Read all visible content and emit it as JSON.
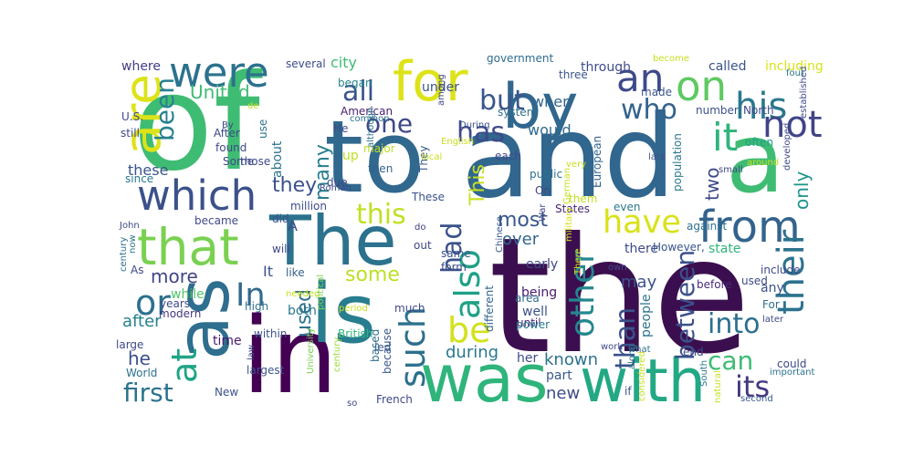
{
  "word_cloud": {
    "words": [
      {
        "text": "the",
        "color": "#3b0f4f"
      },
      {
        "text": "of",
        "color": "#3fbc73"
      },
      {
        "text": "and",
        "color": "#31668e"
      },
      {
        "text": "to",
        "color": "#31688e"
      },
      {
        "text": "a",
        "color": "#3fbc73"
      },
      {
        "text": "in",
        "color": "#440154"
      },
      {
        "text": "is",
        "color": "#287d8e"
      },
      {
        "text": "as",
        "color": "#2e6e8e"
      },
      {
        "text": "The",
        "color": "#2c728e"
      },
      {
        "text": "was",
        "color": "#2fb47c"
      },
      {
        "text": "with",
        "color": "#22a884"
      },
      {
        "text": "by",
        "color": "#31678e"
      },
      {
        "text": "for",
        "color": "#dde318"
      },
      {
        "text": "are",
        "color": "#dde318"
      },
      {
        "text": "that",
        "color": "#7ad151"
      },
      {
        "text": "which",
        "color": "#3b518b"
      },
      {
        "text": "from",
        "color": "#33638d"
      },
      {
        "text": "were",
        "color": "#2c728e"
      },
      {
        "text": "on",
        "color": "#5ec962"
      },
      {
        "text": "it",
        "color": "#2fb47c"
      },
      {
        "text": "an",
        "color": "#3e4a89"
      },
      {
        "text": "his",
        "color": "#2a788e"
      },
      {
        "text": "have",
        "color": "#d8e219"
      },
      {
        "text": "not",
        "color": "#414487"
      },
      {
        "text": "their",
        "color": "#2c728e"
      },
      {
        "text": "or",
        "color": "#2d708e"
      },
      {
        "text": "at",
        "color": "#20a486"
      },
      {
        "text": "be",
        "color": "#d2e21b"
      },
      {
        "text": "In",
        "color": "#31688e"
      },
      {
        "text": "also",
        "color": "#1fa187"
      },
      {
        "text": "such",
        "color": "#2d708e"
      },
      {
        "text": "other",
        "color": "#24878e"
      },
      {
        "text": "its",
        "color": "#453781"
      },
      {
        "text": "this",
        "color": "#c2df23"
      },
      {
        "text": "has",
        "color": "#3e4989"
      },
      {
        "text": "who",
        "color": "#33638d"
      },
      {
        "text": "but",
        "color": "#39568c"
      },
      {
        "text": "all",
        "color": "#3a548c"
      },
      {
        "text": "one",
        "color": "#3f4788"
      },
      {
        "text": "been",
        "color": "#26828e"
      },
      {
        "text": "had",
        "color": "#3b528b"
      },
      {
        "text": "than",
        "color": "#3b528b"
      },
      {
        "text": "between",
        "color": "#3c508b"
      },
      {
        "text": "into",
        "color": "#2d708e"
      },
      {
        "text": "can",
        "color": "#3dbc74"
      },
      {
        "text": "first",
        "color": "#2c738e"
      },
      {
        "text": "most",
        "color": "#39568c"
      },
      {
        "text": "they",
        "color": "#3b518b"
      },
      {
        "text": "many",
        "color": "#277f8e"
      },
      {
        "text": "used",
        "color": "#2d718e"
      },
      {
        "text": "This",
        "color": "#c8e020"
      },
      {
        "text": "some",
        "color": "#bddf26"
      },
      {
        "text": "more",
        "color": "#404688"
      },
      {
        "text": "United",
        "color": "#3fbc73"
      },
      {
        "text": "only",
        "color": "#1f948c"
      },
      {
        "text": "two",
        "color": "#3e4a89"
      },
      {
        "text": "he",
        "color": "#3b518b"
      },
      {
        "text": "may",
        "color": "#3a538b"
      },
      {
        "text": "would",
        "color": "#2f6b8e"
      },
      {
        "text": "these",
        "color": "#3a548c"
      },
      {
        "text": "after",
        "color": "#26818e"
      },
      {
        "text": "during",
        "color": "#2a778e"
      },
      {
        "text": "over",
        "color": "#32658e"
      },
      {
        "text": "new",
        "color": "#3e4c8a"
      },
      {
        "text": "known",
        "color": "#2d718e"
      },
      {
        "text": "when",
        "color": "#31668e"
      },
      {
        "text": "called",
        "color": "#3a548c"
      },
      {
        "text": "including",
        "color": "#d8e219"
      },
      {
        "text": "through",
        "color": "#3e4c8a"
      },
      {
        "text": "under",
        "color": "#3b518b"
      },
      {
        "text": "where",
        "color": "#433e85"
      },
      {
        "text": "city",
        "color": "#3fbc73"
      },
      {
        "text": "It",
        "color": "#3b528b"
      },
      {
        "text": "A",
        "color": "#3e4a89"
      },
      {
        "text": "about",
        "color": "#2c728e"
      },
      {
        "text": "up",
        "color": "#c2df23"
      },
      {
        "text": "became",
        "color": "#3e4989"
      },
      {
        "text": "there",
        "color": "#3e4a89"
      },
      {
        "text": "state",
        "color": "#2fb47c"
      },
      {
        "text": "often",
        "color": "#1f9e89"
      },
      {
        "text": "number",
        "color": "#3b528b"
      },
      {
        "text": "early",
        "color": "#3f4788"
      },
      {
        "text": "being",
        "color": "#481a6c"
      },
      {
        "text": "well",
        "color": "#3b528b"
      },
      {
        "text": "both",
        "color": "#2a788e"
      },
      {
        "text": "while",
        "color": "#52c569"
      },
      {
        "text": "people",
        "color": "#2c728e"
      },
      {
        "text": "any",
        "color": "#3b528b"
      },
      {
        "text": "before",
        "color": "#472c7a"
      },
      {
        "text": "part",
        "color": "#38598c"
      },
      {
        "text": "her",
        "color": "#3e4c8a"
      },
      {
        "text": "could",
        "color": "#3e4989"
      },
      {
        "text": "time",
        "color": "#48186a"
      },
      {
        "text": "several",
        "color": "#3d4d8a"
      },
      {
        "text": "government",
        "color": "#2f6c8e"
      },
      {
        "text": "began",
        "color": "#25848e"
      },
      {
        "text": "made",
        "color": "#3a548c"
      },
      {
        "text": "three",
        "color": "#39568c"
      },
      {
        "text": "major",
        "color": "#c2df23"
      },
      {
        "text": "use",
        "color": "#2c738e"
      },
      {
        "text": "each",
        "color": "#3e4a89"
      },
      {
        "text": "American",
        "color": "#481f70"
      },
      {
        "text": "population",
        "color": "#2a788e"
      },
      {
        "text": "European",
        "color": "#32648e"
      },
      {
        "text": "million",
        "color": "#3e4a89"
      },
      {
        "text": "States",
        "color": "#482878"
      },
      {
        "text": "against",
        "color": "#2d708e"
      },
      {
        "text": "However,",
        "color": "#3a548c"
      },
      {
        "text": "include",
        "color": "#3e4989"
      },
      {
        "text": "modern",
        "color": "#453882"
      },
      {
        "text": "high",
        "color": "#2d708e"
      },
      {
        "text": "within",
        "color": "#3b528b"
      },
      {
        "text": "British",
        "color": "#2fb47c"
      },
      {
        "text": "because",
        "color": "#38588c"
      },
      {
        "text": "French",
        "color": "#3e4989"
      },
      {
        "text": "largest",
        "color": "#3b528b"
      },
      {
        "text": "New",
        "color": "#3b518b"
      },
      {
        "text": "World",
        "color": "#2c728e"
      },
      {
        "text": "system",
        "color": "#2d708e"
      },
      {
        "text": "He",
        "color": "#3e4a89"
      },
      {
        "text": "until",
        "color": "#472d7b"
      },
      {
        "text": "power",
        "color": "#2a788e"
      },
      {
        "text": "area",
        "color": "#2f6c8e"
      },
      {
        "text": "For",
        "color": "#2c728e"
      },
      {
        "text": "end",
        "color": "#3e4989"
      },
      {
        "text": "led",
        "color": "#38598c"
      },
      {
        "text": "based",
        "color": "#2e6e8e"
      },
      {
        "text": "University",
        "color": "#7ad151"
      },
      {
        "text": "century,",
        "color": "#9fda3a"
      },
      {
        "text": "so",
        "color": "#3f4788"
      },
      {
        "text": "law",
        "color": "#404688"
      },
      {
        "text": "like",
        "color": "#34618d"
      },
      {
        "text": "needed",
        "color": "#c8e020"
      },
      {
        "text": "political",
        "color": "#7ad151"
      },
      {
        "text": "period",
        "color": "#c8e020"
      },
      {
        "text": "much",
        "color": "#3e4989"
      },
      {
        "text": "different",
        "color": "#32648e"
      },
      {
        "text": "same",
        "color": "#3a548c"
      },
      {
        "text": "form",
        "color": "#3e4a89"
      },
      {
        "text": "out",
        "color": "#3f4788"
      },
      {
        "text": "do",
        "color": "#423f85"
      },
      {
        "text": "did",
        "color": "#3b528b"
      },
      {
        "text": "will",
        "color": "#3e4989"
      },
      {
        "text": "These",
        "color": "#3b528b"
      },
      {
        "text": "They",
        "color": "#38598c"
      },
      {
        "text": "then",
        "color": "#33638d"
      },
      {
        "text": "due",
        "color": "#3e4989"
      },
      {
        "text": "public",
        "color": "#2d708e"
      },
      {
        "text": "On",
        "color": "#3f4788"
      },
      {
        "text": "them",
        "color": "#c2df23"
      },
      {
        "text": "even",
        "color": "#2a788e"
      },
      {
        "text": "military",
        "color": "#d8e219"
      },
      {
        "text": "There",
        "color": "#d8e219"
      },
      {
        "text": "Chinese",
        "color": "#38598c"
      },
      {
        "text": "own",
        "color": "#3e4989"
      },
      {
        "text": "work",
        "color": "#3e4989"
      },
      {
        "text": "what",
        "color": "#2d708e"
      },
      {
        "text": "along",
        "color": "#2a788e"
      },
      {
        "text": "if",
        "color": "#3b528b"
      },
      {
        "text": "considered",
        "color": "#c8e020"
      },
      {
        "text": "South",
        "color": "#2a788e"
      },
      {
        "text": "second",
        "color": "#38598c"
      },
      {
        "text": "important",
        "color": "#2c728e"
      },
      {
        "text": "later",
        "color": "#3e4989"
      },
      {
        "text": "around",
        "color": "#c8e020"
      },
      {
        "text": "small",
        "color": "#3e4989"
      },
      {
        "text": "developed",
        "color": "#3e4989"
      },
      {
        "text": "established",
        "color": "#3e4989"
      },
      {
        "text": "four",
        "color": "#2a788e"
      },
      {
        "text": "become",
        "color": "#c8e020"
      },
      {
        "text": "late",
        "color": "#3b528b"
      },
      {
        "text": "very",
        "color": "#c8e020"
      },
      {
        "text": "German",
        "color": "#c8e020"
      },
      {
        "text": "War",
        "color": "#3e4989"
      },
      {
        "text": "local",
        "color": "#c8e020"
      },
      {
        "text": "English",
        "color": "#c8e020"
      },
      {
        "text": "During",
        "color": "#3b528b"
      },
      {
        "text": "among",
        "color": "#3e4989"
      },
      {
        "text": "North",
        "color": "#3e4989"
      },
      {
        "text": "common",
        "color": "#2c728e"
      },
      {
        "text": "although",
        "color": "#2c728e"
      },
      {
        "text": "Roman",
        "color": "#3e4989"
      },
      {
        "text": "Some",
        "color": "#3e4989"
      },
      {
        "text": "those",
        "color": "#3e4989"
      },
      {
        "text": "since",
        "color": "#2a788e"
      },
      {
        "text": "John",
        "color": "#3e4989"
      },
      {
        "text": "now",
        "color": "#2c728e"
      },
      {
        "text": "century",
        "color": "#2c728e"
      },
      {
        "text": "As",
        "color": "#3e4989"
      },
      {
        "text": "years",
        "color": "#3e4989"
      },
      {
        "text": "large",
        "color": "#3e4989"
      },
      {
        "text": "still",
        "color": "#3e4989"
      },
      {
        "text": "After",
        "color": "#3e4989"
      },
      {
        "text": "found",
        "color": "#3e4989"
      },
      {
        "text": "By",
        "color": "#3e4989"
      },
      {
        "text": "U.S.",
        "color": "#3e4989"
      },
      {
        "text": "de",
        "color": "#c8e020"
      },
      {
        "text": "natural",
        "color": "#c8e020"
      },
      {
        "text": "used",
        "color": "#3e4989"
      }
    ]
  }
}
